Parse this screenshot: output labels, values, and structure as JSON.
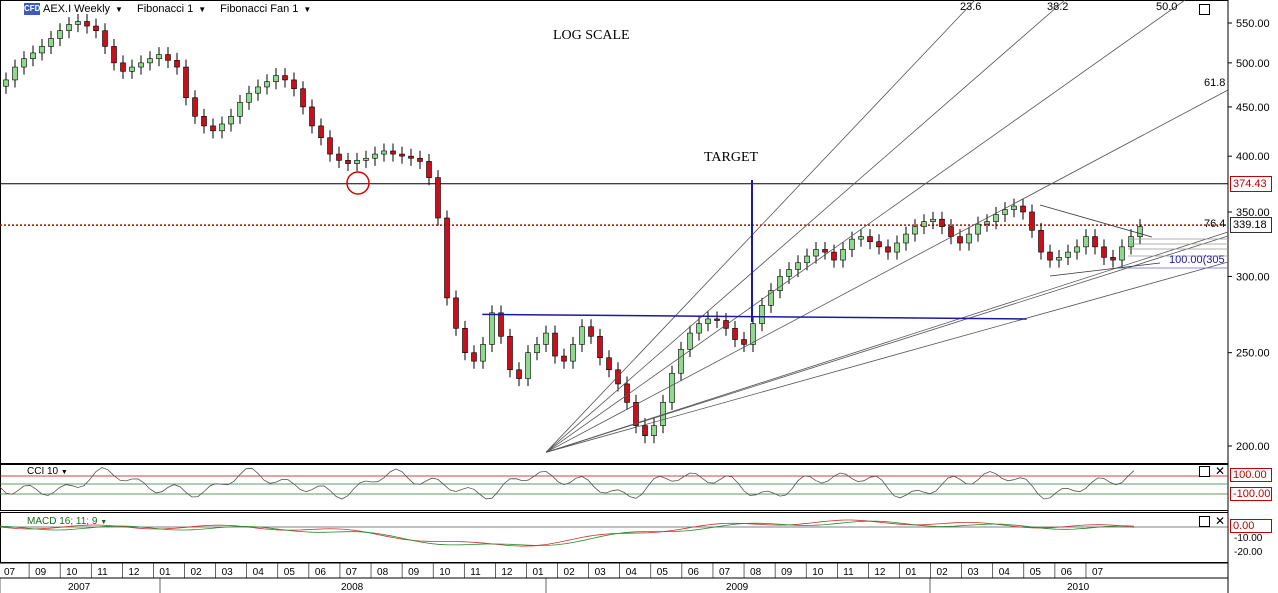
{
  "toolbar": {
    "logo": "CFD",
    "symbol": "AEX.I Weekly",
    "tool1": "Fibonacci 1",
    "tool2": "Fibonacci Fan 1"
  },
  "annotations": {
    "log_scale": "LOG SCALE",
    "target": "TARGET"
  },
  "fib_labels": [
    "23.6",
    "38.2",
    "50.0",
    "61.8",
    "76.4"
  ],
  "fib_level_label": "100.00(305",
  "price_boxes": {
    "upper": "374.43",
    "last": "339.18"
  },
  "cci_panel": {
    "title": "CCI 10",
    "box_upper": "100.00",
    "box_lower": "-100.00",
    "ticks": [
      "100.00",
      "-100.00"
    ]
  },
  "macd_panel": {
    "title": "MACD 16; 11; 9",
    "box_value": "0.00",
    "ticks": [
      "-10.00",
      "-20.00"
    ]
  },
  "colors": {
    "up": "#90d890",
    "down": "#c8101c",
    "fan": "#555555",
    "target": "#1a1aa0",
    "resistance": "#c00000"
  },
  "icons": [
    "restore-icon",
    "close-icon"
  ],
  "chart_data": {
    "type": "candlestick",
    "symbol": "AEX.I",
    "interval": "Weekly",
    "y_scale": "log",
    "ylim": [
      190,
      580
    ],
    "y_ticks": [
      550,
      500,
      450,
      400,
      350,
      300,
      250,
      200
    ],
    "x_month_labels": [
      "07",
      "09",
      "10",
      "11",
      "12",
      "01",
      "02",
      "03",
      "04",
      "05",
      "06",
      "07",
      "08",
      "09",
      "10",
      "11",
      "12",
      "01",
      "02",
      "03",
      "04",
      "05",
      "06",
      "07",
      "08",
      "09",
      "10",
      "11",
      "12",
      "01",
      "02",
      "03",
      "04",
      "05",
      "06",
      "07"
    ],
    "x_year_labels": [
      "2007",
      "2008",
      "2009",
      "2010"
    ],
    "horizontal_lines": [
      {
        "value": 374.43,
        "style": "solid",
        "color": "black"
      },
      {
        "value": 339.18,
        "style": "dotted",
        "color": "red"
      }
    ],
    "neckline": [
      {
        "x": 0.42,
        "y": 274
      },
      {
        "x": 0.9,
        "y": 271
      }
    ],
    "fan_origin": {
      "x": 0.477,
      "y": 197
    },
    "series": [
      {
        "name": "AEX.I",
        "type": "close",
        "values": [
          480,
          495,
          505,
          512,
          520,
          530,
          540,
          548,
          552,
          546,
          540,
          520,
          500,
          490,
          495,
          500,
          505,
          510,
          503,
          495,
          460,
          440,
          430,
          425,
          432,
          440,
          455,
          465,
          472,
          478,
          485,
          480,
          470,
          450,
          430,
          418,
          402,
          396,
          393,
          396,
          398,
          402,
          405,
          402,
          400,
          398,
          395,
          380,
          345,
          285,
          265,
          250,
          245,
          255,
          275,
          260,
          240,
          235,
          250,
          255,
          262,
          248,
          245,
          255,
          266,
          260,
          247,
          240,
          232,
          222,
          210,
          205,
          210,
          222,
          238,
          252,
          262,
          268,
          271,
          270,
          265,
          258,
          255,
          268,
          280,
          290,
          300,
          305,
          310,
          315,
          320,
          318,
          312,
          320,
          328,
          330,
          326,
          322,
          318,
          325,
          332,
          338,
          342,
          344,
          338,
          330,
          325,
          332,
          340,
          342,
          348,
          352,
          355,
          350,
          335,
          318,
          312,
          314,
          318,
          322,
          330,
          322,
          314,
          312,
          322,
          330,
          338
        ]
      }
    ]
  }
}
